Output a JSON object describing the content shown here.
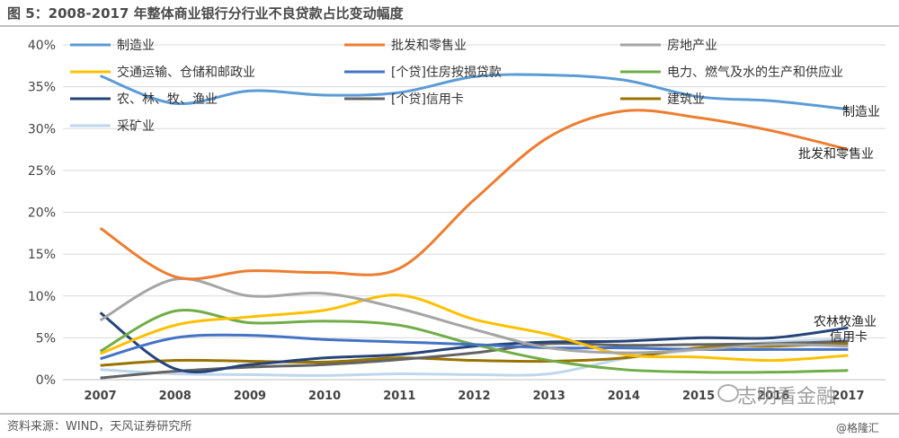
{
  "page": {
    "title": "图 5：2008-2017 年整体商业银行分行业不良贷款占比变动幅度",
    "source": "资料来源：WIND，天风证券研究所",
    "watermark": "志明看金融",
    "watermark_brand": "@格隆汇"
  },
  "chart_data": {
    "type": "line",
    "x": [
      "2007",
      "2008",
      "2009",
      "2010",
      "2011",
      "2012",
      "2013",
      "2014",
      "2015",
      "2016",
      "2017"
    ],
    "ylim": [
      0,
      40
    ],
    "yticks": [
      "0%",
      "5%",
      "10%",
      "15%",
      "20%",
      "25%",
      "30%",
      "35%",
      "40%"
    ],
    "grid": true,
    "legend_position": "top",
    "end_labels": [
      "制造业",
      "批发和零售业",
      "农林牧渔业",
      "信用卡"
    ],
    "series": [
      {
        "name": "制造业",
        "color": "#5b9bd5",
        "values": [
          36.3,
          33.0,
          34.5,
          34.0,
          34.3,
          36.2,
          36.4,
          35.8,
          33.8,
          33.3,
          32.3
        ]
      },
      {
        "name": "批发和零售业",
        "color": "#ed7d31",
        "values": [
          18.1,
          12.3,
          13.0,
          12.8,
          13.3,
          21.5,
          29.0,
          32.1,
          31.3,
          29.7,
          27.5
        ]
      },
      {
        "name": "房地产业",
        "color": "#a5a5a5",
        "values": [
          7.1,
          12.0,
          10.0,
          10.3,
          8.5,
          6.0,
          3.8,
          3.2,
          3.6,
          4.2,
          4.0
        ]
      },
      {
        "name": "交通运输、仓储和邮政业",
        "color": "#ffc000",
        "values": [
          3.1,
          6.5,
          7.5,
          8.3,
          10.1,
          7.2,
          5.4,
          3.0,
          2.7,
          2.3,
          2.9
        ]
      },
      {
        "name": "[个贷]住房按揭贷款",
        "color": "#4472c4",
        "values": [
          2.5,
          5.0,
          5.3,
          4.8,
          4.5,
          4.2,
          3.8,
          3.8,
          3.6,
          3.6,
          3.6
        ]
      },
      {
        "name": "电力、燃气及水的生产和供应业",
        "color": "#70ad47",
        "values": [
          3.4,
          8.2,
          6.8,
          7.0,
          6.5,
          4.2,
          2.3,
          1.2,
          0.9,
          0.9,
          1.1
        ]
      },
      {
        "name": "农、林、牧、渔业",
        "color": "#264478",
        "values": [
          8.0,
          1.3,
          1.8,
          2.6,
          3.0,
          4.0,
          4.5,
          4.6,
          5.0,
          5.0,
          6.2
        ]
      },
      {
        "name": "[个贷]信用卡",
        "color": "#636363",
        "values": [
          0.2,
          1.0,
          1.5,
          1.8,
          2.4,
          3.2,
          4.3,
          4.1,
          4.2,
          4.3,
          4.6
        ]
      },
      {
        "name": "建筑业",
        "color": "#997300",
        "values": [
          1.7,
          2.3,
          2.2,
          2.1,
          2.6,
          2.3,
          2.2,
          2.6,
          3.8,
          4.0,
          4.3
        ]
      },
      {
        "name": "采矿业",
        "color": "#bdd7ee",
        "values": [
          1.2,
          0.7,
          0.6,
          0.5,
          0.7,
          0.6,
          0.7,
          2.5,
          3.6,
          4.5,
          4.8
        ]
      }
    ]
  }
}
